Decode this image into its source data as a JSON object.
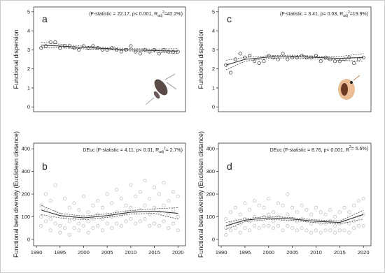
{
  "chart_data": [
    {
      "type": "scatter",
      "letter": "a",
      "ylabel": "Functional dispersion",
      "stat": [
        {
          "text": "(F-statistic = 22.17, p< 0.001, R"
        },
        {
          "text": "adj",
          "sub": true
        },
        {
          "text": "2",
          "sup": true
        },
        {
          "text": "=42.2%)"
        }
      ],
      "xlim": [
        1989.4,
        2021.6
      ],
      "ylim": [
        -0.25,
        5.25
      ],
      "yticks": [
        0,
        1,
        2,
        3,
        4,
        5
      ],
      "color": "#333333",
      "x": [
        1991,
        1992,
        1993,
        1994,
        1995,
        1996,
        1997,
        1998,
        1999,
        2000,
        2001,
        2002,
        2003,
        2004,
        2005,
        2006,
        2007,
        2008,
        2009,
        2010,
        2011,
        2012,
        2013,
        2014,
        2015,
        2016,
        2017,
        2018,
        2019,
        2020
      ],
      "values": [
        3.1,
        3.2,
        3.4,
        3.4,
        3.1,
        3.2,
        3.2,
        3.1,
        3.0,
        3.2,
        3.1,
        3.2,
        3.1,
        3.0,
        3.0,
        3.1,
        3.0,
        2.9,
        3.0,
        3.2,
        2.9,
        2.8,
        3.0,
        2.9,
        3.0,
        2.8,
        3.0,
        2.9,
        2.9,
        2.9
      ],
      "fit": {
        "x": [
          1991,
          1995,
          2000,
          2005,
          2010,
          2015,
          2020
        ],
        "values": [
          3.25,
          3.2,
          3.12,
          3.06,
          3.0,
          2.96,
          2.93
        ],
        "lower": [
          3.1,
          3.1,
          3.05,
          3.0,
          2.94,
          2.88,
          2.8
        ],
        "upper": [
          3.4,
          3.3,
          3.19,
          3.12,
          3.06,
          3.04,
          3.06
        ]
      }
    },
    {
      "type": "scatter",
      "letter": "b",
      "ylabel": "Functional beta diversity (Euclidean distance)",
      "stat": [
        {
          "text": "DEuc (F-statistic = 4.11, p< 0.01, R"
        },
        {
          "text": "adj",
          "sub": true
        },
        {
          "text": "2",
          "sup": true
        },
        {
          "text": "= 2.7%)"
        }
      ],
      "xlim": [
        1989.4,
        2021.6
      ],
      "ylim": [
        -28,
        425
      ],
      "yticks": [
        0,
        100,
        200,
        300,
        400
      ],
      "xticks": [
        1990,
        1995,
        2000,
        2005,
        2010,
        2015,
        2020
      ],
      "color": "#bbbbbb",
      "x": [
        1991,
        1991,
        1991,
        1992,
        1992,
        1992,
        1993,
        1993,
        1993,
        1994,
        1994,
        1994,
        1995,
        1995,
        1995,
        1996,
        1996,
        1996,
        1997,
        1997,
        1997,
        1998,
        1998,
        1998,
        1999,
        1999,
        1999,
        2000,
        2000,
        2000,
        2001,
        2001,
        2001,
        2002,
        2002,
        2002,
        2003,
        2003,
        2003,
        2004,
        2004,
        2004,
        2005,
        2005,
        2005,
        2006,
        2006,
        2006,
        2007,
        2007,
        2007,
        2008,
        2008,
        2008,
        2009,
        2009,
        2009,
        2010,
        2010,
        2010,
        2011,
        2011,
        2011,
        2012,
        2012,
        2012,
        2013,
        2013,
        2013,
        2014,
        2014,
        2014,
        2015,
        2015,
        2015,
        2016,
        2016,
        2016,
        2017,
        2017,
        2017,
        2018,
        2018,
        2018,
        2019,
        2019,
        2019,
        2020,
        2020,
        2020
      ],
      "values": [
        150,
        100,
        60,
        200,
        130,
        80,
        170,
        90,
        40,
        240,
        120,
        70,
        110,
        60,
        30,
        180,
        100,
        50,
        140,
        80,
        20,
        160,
        90,
        50,
        130,
        70,
        40,
        190,
        100,
        60,
        120,
        80,
        30,
        150,
        90,
        50,
        170,
        110,
        60,
        140,
        90,
        40,
        200,
        110,
        70,
        160,
        100,
        50,
        220,
        120,
        70,
        180,
        110,
        60,
        150,
        120,
        80,
        240,
        140,
        90,
        190,
        120,
        70,
        210,
        130,
        80,
        260,
        150,
        90,
        180,
        110,
        60,
        230,
        140,
        70,
        200,
        120,
        60,
        250,
        150,
        80,
        170,
        110,
        50,
        210,
        130,
        70,
        190,
        100,
        40
      ],
      "fit": {
        "x": [
          1991,
          1995,
          2000,
          2005,
          2010,
          2015,
          2020
        ],
        "values": [
          130,
          105,
          95,
          105,
          120,
          125,
          115
        ],
        "lower": [
          110,
          95,
          87,
          97,
          112,
          115,
          90
        ],
        "upper": [
          150,
          115,
          103,
          113,
          128,
          135,
          140
        ]
      }
    },
    {
      "type": "scatter",
      "letter": "c",
      "ylabel": "Functional dispersion",
      "stat": [
        {
          "text": "(F-statistic = 3.41, p= 0.03, R"
        },
        {
          "text": "adj",
          "sub": true
        },
        {
          "text": "2",
          "sup": true
        },
        {
          "text": "=19.9%)"
        }
      ],
      "xlim": [
        1989.4,
        2021.6
      ],
      "ylim": [
        -0.25,
        5.25
      ],
      "yticks": [
        0,
        1,
        2,
        3,
        4,
        5
      ],
      "color": "#333333",
      "x": [
        1991,
        1992,
        1993,
        1994,
        1995,
        1996,
        1997,
        1998,
        1999,
        2000,
        2001,
        2002,
        2003,
        2004,
        2005,
        2006,
        2007,
        2008,
        2009,
        2010,
        2011,
        2012,
        2013,
        2014,
        2015,
        2016,
        2017,
        2018,
        2019,
        2020
      ],
      "values": [
        2.2,
        1.8,
        2.5,
        2.8,
        2.6,
        2.7,
        2.4,
        2.3,
        2.4,
        2.7,
        2.6,
        2.5,
        2.8,
        2.5,
        2.6,
        2.6,
        2.7,
        2.6,
        2.6,
        2.7,
        2.4,
        2.6,
        2.5,
        2.4,
        2.4,
        2.5,
        2.6,
        2.3,
        2.5,
        2.6
      ],
      "fit": {
        "x": [
          1991,
          1995,
          2000,
          2005,
          2010,
          2015,
          2020
        ],
        "values": [
          2.2,
          2.5,
          2.62,
          2.65,
          2.6,
          2.55,
          2.6
        ],
        "lower": [
          1.95,
          2.4,
          2.55,
          2.58,
          2.53,
          2.45,
          2.4
        ],
        "upper": [
          2.45,
          2.6,
          2.69,
          2.72,
          2.67,
          2.65,
          2.8
        ]
      }
    },
    {
      "type": "scatter",
      "letter": "d",
      "ylabel": "Functional beta diversity (Euclidean distance)",
      "stat": [
        {
          "text": "DEuc (F-statistic = 8.76, p< 0.001, R"
        },
        {
          "text": "2",
          "sup": true
        },
        {
          "text": "= 5.6%)"
        }
      ],
      "xlim": [
        1989.4,
        2021.6
      ],
      "ylim": [
        -28,
        425
      ],
      "yticks": [
        0,
        100,
        200,
        300,
        400
      ],
      "xticks": [
        1990,
        1995,
        2000,
        2005,
        2010,
        2015,
        2020
      ],
      "color": "#bbbbbb",
      "x": [
        1991,
        1991,
        1991,
        1992,
        1992,
        1992,
        1993,
        1993,
        1993,
        1994,
        1994,
        1994,
        1995,
        1995,
        1995,
        1996,
        1996,
        1996,
        1997,
        1997,
        1997,
        1998,
        1998,
        1998,
        1999,
        1999,
        1999,
        2000,
        2000,
        2000,
        2001,
        2001,
        2001,
        2002,
        2002,
        2002,
        2003,
        2003,
        2003,
        2004,
        2004,
        2004,
        2005,
        2005,
        2005,
        2006,
        2006,
        2006,
        2007,
        2007,
        2007,
        2008,
        2008,
        2008,
        2009,
        2009,
        2009,
        2010,
        2010,
        2010,
        2011,
        2011,
        2011,
        2012,
        2012,
        2012,
        2013,
        2013,
        2013,
        2014,
        2014,
        2014,
        2015,
        2015,
        2015,
        2016,
        2016,
        2016,
        2017,
        2017,
        2017,
        2018,
        2018,
        2018,
        2019,
        2019,
        2019,
        2020,
        2020,
        2020
      ],
      "values": [
        90,
        50,
        20,
        120,
        70,
        40,
        140,
        80,
        50,
        110,
        70,
        30,
        160,
        90,
        50,
        130,
        80,
        40,
        170,
        100,
        60,
        150,
        90,
        50,
        140,
        100,
        60,
        180,
        110,
        60,
        120,
        80,
        50,
        160,
        100,
        60,
        150,
        90,
        40,
        200,
        110,
        60,
        140,
        90,
        50,
        120,
        80,
        40,
        150,
        90,
        50,
        130,
        80,
        40,
        110,
        70,
        30,
        140,
        80,
        40,
        120,
        70,
        30,
        110,
        70,
        40,
        130,
        80,
        40,
        100,
        60,
        30,
        120,
        70,
        40,
        140,
        80,
        40,
        120,
        70,
        30,
        150,
        80,
        50,
        170,
        100,
        60,
        180,
        110,
        60
      ],
      "fit": {
        "x": [
          1991,
          1995,
          2000,
          2005,
          2010,
          2015,
          2020
        ],
        "values": [
          60,
          85,
          95,
          90,
          80,
          75,
          110
        ],
        "lower": [
          45,
          78,
          88,
          84,
          74,
          68,
          90
        ],
        "upper": [
          75,
          92,
          102,
          96,
          86,
          82,
          128
        ]
      }
    }
  ]
}
